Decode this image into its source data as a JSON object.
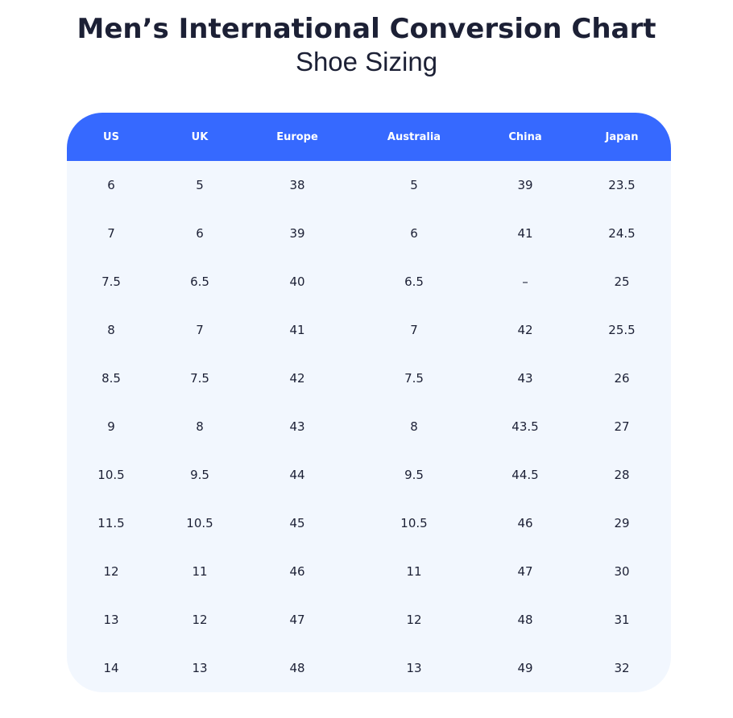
{
  "title": "Men’s International Conversion Chart",
  "subtitle": "Shoe Sizing",
  "colors": {
    "header_bg": "#3669ff",
    "body_bg": "#f2f7fe",
    "text": "#1c2035"
  },
  "table": {
    "headers": [
      "US",
      "UK",
      "Europe",
      "Australia",
      "China",
      "Japan"
    ],
    "rows": [
      [
        "6",
        "5",
        "38",
        "5",
        "39",
        "23.5"
      ],
      [
        "7",
        "6",
        "39",
        "6",
        "41",
        "24.5"
      ],
      [
        "7.5",
        "6.5",
        "40",
        "6.5",
        "–",
        "25"
      ],
      [
        "8",
        "7",
        "41",
        "7",
        "42",
        "25.5"
      ],
      [
        "8.5",
        "7.5",
        "42",
        "7.5",
        "43",
        "26"
      ],
      [
        "9",
        "8",
        "43",
        "8",
        "43.5",
        "27"
      ],
      [
        "10.5",
        "9.5",
        "44",
        "9.5",
        "44.5",
        "28"
      ],
      [
        "11.5",
        "10.5",
        "45",
        "10.5",
        "46",
        "29"
      ],
      [
        "12",
        "11",
        "46",
        "11",
        "47",
        "30"
      ],
      [
        "13",
        "12",
        "47",
        "12",
        "48",
        "31"
      ],
      [
        "14",
        "13",
        "48",
        "13",
        "49",
        "32"
      ]
    ]
  }
}
